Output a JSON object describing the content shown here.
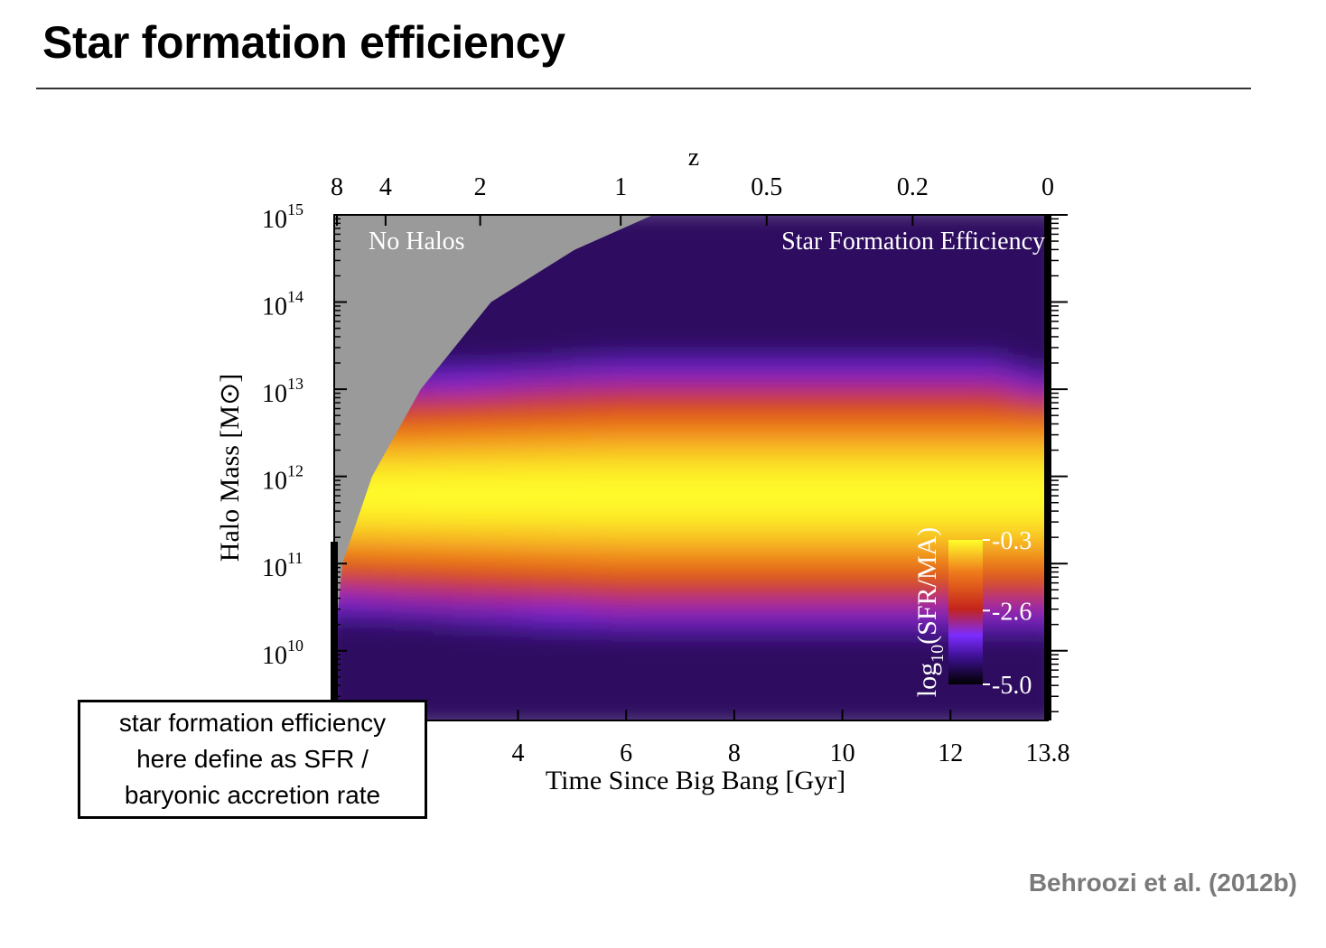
{
  "slide": {
    "title": "Star formation efficiency",
    "citation": "Behroozi et al. (2012b)",
    "note_lines": [
      "star formation efficiency",
      "here define as SFR /",
      "baryonic accretion rate"
    ]
  },
  "chart_data": {
    "type": "heatmap",
    "title": "",
    "xlabel": "Time Since Big Bang [Gyr]",
    "ylabel": "Halo Mass [M⊙]",
    "top_axis_label": "z",
    "xlim": [
      0.6,
      13.8
    ],
    "ylim_log10": [
      9.2,
      15.0
    ],
    "x_ticks": [
      {
        "value": 4,
        "label": "4"
      },
      {
        "value": 6,
        "label": "6"
      },
      {
        "value": 8,
        "label": "8"
      },
      {
        "value": 10,
        "label": "10"
      },
      {
        "value": 12,
        "label": "12"
      },
      {
        "value": 13.8,
        "label": "13.8"
      }
    ],
    "top_ticks": [
      {
        "t": 0.65,
        "label": "8"
      },
      {
        "t": 1.55,
        "label": "4"
      },
      {
        "t": 3.3,
        "label": "2"
      },
      {
        "t": 5.9,
        "label": "1"
      },
      {
        "t": 8.6,
        "label": "0.5"
      },
      {
        "t": 11.3,
        "label": "0.2"
      },
      {
        "t": 13.8,
        "label": "0"
      }
    ],
    "y_ticks": [
      {
        "log10": 10,
        "base": "10",
        "exp": "10"
      },
      {
        "log10": 11,
        "base": "10",
        "exp": "11"
      },
      {
        "log10": 12,
        "base": "10",
        "exp": "12"
      },
      {
        "log10": 13,
        "base": "10",
        "exp": "13"
      },
      {
        "log10": 14,
        "base": "10",
        "exp": "14"
      },
      {
        "log10": 15,
        "base": "10",
        "exp": "15"
      }
    ],
    "colorbar": {
      "label": "log10(SFR/MA)",
      "min": -5.0,
      "max": -0.3,
      "ticks": [
        {
          "value": -0.3,
          "label": "-0.3"
        },
        {
          "value": -2.6,
          "label": "-2.6"
        },
        {
          "value": -5.0,
          "label": "-5.0"
        }
      ],
      "colors": [
        "#000000",
        "#7b2cff",
        "#c4241c",
        "#f07c1c",
        "#ffff2a"
      ]
    },
    "annotations": [
      {
        "text": "No Halos",
        "region": "top-left"
      },
      {
        "text": "Star Formation Efficiency",
        "region": "top-right"
      }
    ],
    "no_halo_boundary": [
      {
        "t": 0.6,
        "log10M": 10.0
      },
      {
        "t": 0.75,
        "log10M": 11.0
      },
      {
        "t": 1.3,
        "log10M": 12.0
      },
      {
        "t": 2.2,
        "log10M": 13.0
      },
      {
        "t": 3.5,
        "log10M": 14.0
      },
      {
        "t": 5.05,
        "log10M": 14.6
      },
      {
        "t": 6.5,
        "log10M": 15.0
      }
    ],
    "efficiency_ridge_log10M": 11.8,
    "efficiency_peak_value": -0.3,
    "no_halo_color": "#9a9a9a"
  }
}
